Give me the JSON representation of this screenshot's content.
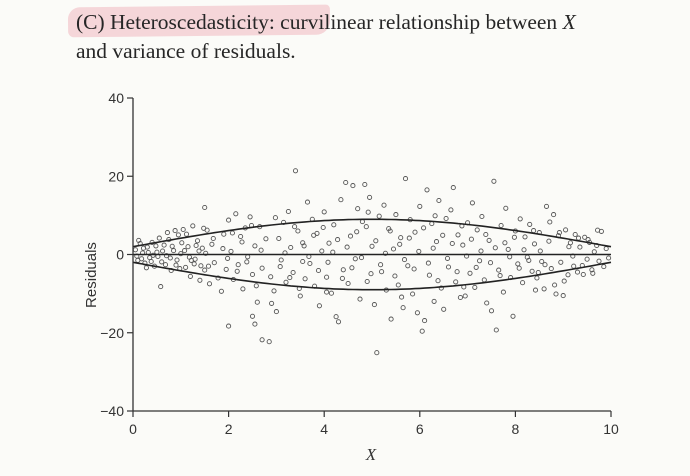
{
  "heading": {
    "line1_prefix": "(C) Heteroscedasticity: curvilinear relationship between ",
    "line1_var": "X",
    "line2": "and variance of residuals."
  },
  "colors": {
    "axis": "#333333",
    "marker": "#555555",
    "curve": "#222222",
    "highlight": "#f3c9cf"
  },
  "chart_data": {
    "type": "scatter",
    "xlabel": "X",
    "ylabel": "Residuals",
    "xlim": [
      0,
      10
    ],
    "ylim": [
      -40,
      40
    ],
    "xticks": [
      0,
      2,
      4,
      6,
      8,
      10
    ],
    "yticks": [
      -40,
      -20,
      0,
      20,
      40
    ],
    "grid": false,
    "marker": "open-circle",
    "envelope_amplitude": [
      2,
      9
    ],
    "points": [
      [
        0.05,
        1.2
      ],
      [
        0.1,
        -1.5
      ],
      [
        0.15,
        2.8
      ],
      [
        0.2,
        0.4
      ],
      [
        0.25,
        -2.2
      ],
      [
        0.3,
        1.9
      ],
      [
        0.35,
        -0.8
      ],
      [
        0.4,
        3.1
      ],
      [
        0.45,
        -3.0
      ],
      [
        0.5,
        0.6
      ],
      [
        0.55,
        4.2
      ],
      [
        0.6,
        -1.9
      ],
      [
        0.65,
        2.4
      ],
      [
        0.7,
        -0.3
      ],
      [
        0.75,
        3.8
      ],
      [
        0.8,
        -4.1
      ],
      [
        0.85,
        1.0
      ],
      [
        0.9,
        -2.7
      ],
      [
        0.95,
        5.0
      ],
      [
        1.0,
        0.2
      ],
      [
        0.12,
        3.6
      ],
      [
        0.28,
        -3.4
      ],
      [
        0.42,
        -0.2
      ],
      [
        0.58,
        -8.2
      ],
      [
        0.72,
        5.6
      ],
      [
        0.88,
        6.1
      ],
      [
        1.05,
        6.4
      ],
      [
        1.1,
        -3.3
      ],
      [
        1.15,
        2.0
      ],
      [
        1.2,
        -5.6
      ],
      [
        1.25,
        7.3
      ],
      [
        1.3,
        -1.2
      ],
      [
        1.35,
        3.5
      ],
      [
        1.4,
        -6.6
      ],
      [
        1.45,
        1.6
      ],
      [
        1.5,
        -4.0
      ],
      [
        1.55,
        6.2
      ],
      [
        1.6,
        -7.5
      ],
      [
        1.65,
        2.6
      ],
      [
        1.7,
        -2.1
      ],
      [
        1.5,
        12.0
      ],
      [
        1.85,
        -9.4
      ],
      [
        1.9,
        5.2
      ],
      [
        1.95,
        -3.8
      ],
      [
        2.0,
        8.8
      ],
      [
        2.05,
        0.8
      ],
      [
        2.1,
        -6.4
      ],
      [
        2.15,
        10.4
      ],
      [
        2.2,
        -2.6
      ],
      [
        2.25,
        4.6
      ],
      [
        2.0,
        -18.3
      ],
      [
        2.3,
        -8.8
      ],
      [
        2.35,
        6.8
      ],
      [
        2.4,
        -0.6
      ],
      [
        2.45,
        9.6
      ],
      [
        2.5,
        -5.1
      ],
      [
        2.55,
        2.2
      ],
      [
        2.6,
        -12.2
      ],
      [
        2.65,
        7.1
      ],
      [
        2.7,
        -3.5
      ],
      [
        2.5,
        -15.8
      ],
      [
        2.55,
        -17.8
      ],
      [
        2.7,
        -21.8
      ],
      [
        2.85,
        -22.3
      ],
      [
        2.9,
        -12.5
      ],
      [
        2.95,
        -9.3
      ],
      [
        3.0,
        -14.6
      ],
      [
        3.05,
        4.1
      ],
      [
        3.1,
        -1.4
      ],
      [
        3.15,
        8.2
      ],
      [
        3.2,
        -7.1
      ],
      [
        3.25,
        11.0
      ],
      [
        3.3,
        1.8
      ],
      [
        3.35,
        -4.6
      ],
      [
        3.4,
        21.4
      ],
      [
        3.45,
        6.0
      ],
      [
        3.5,
        -10.6
      ],
      [
        3.55,
        3.0
      ],
      [
        3.6,
        -6.2
      ],
      [
        3.65,
        13.4
      ],
      [
        3.7,
        -2.3
      ],
      [
        3.75,
        9.0
      ],
      [
        3.8,
        -8.1
      ],
      [
        3.85,
        5.4
      ],
      [
        3.9,
        -13.1
      ],
      [
        3.95,
        0.9
      ],
      [
        4.0,
        10.9
      ],
      [
        4.05,
        -5.8
      ],
      [
        4.1,
        2.9
      ],
      [
        4.15,
        -9.9
      ],
      [
        4.2,
        7.6
      ],
      [
        4.25,
        -15.9
      ],
      [
        4.3,
        -17.2
      ],
      [
        4.35,
        14.0
      ],
      [
        4.4,
        -3.9
      ],
      [
        4.45,
        18.4
      ],
      [
        4.5,
        -7.4
      ],
      [
        4.55,
        4.7
      ],
      [
        4.6,
        17.6
      ],
      [
        4.65,
        -1.1
      ],
      [
        4.7,
        11.7
      ],
      [
        4.75,
        -11.4
      ],
      [
        4.8,
        8.4
      ],
      [
        4.85,
        17.9
      ],
      [
        4.9,
        -6.9
      ],
      [
        4.95,
        14.6
      ],
      [
        5.0,
        2.1
      ],
      [
        5.05,
        -12.8
      ],
      [
        5.1,
        -25.1
      ],
      [
        5.15,
        9.8
      ],
      [
        5.2,
        -4.4
      ],
      [
        5.25,
        12.6
      ],
      [
        5.3,
        -9.1
      ],
      [
        5.35,
        6.6
      ],
      [
        5.4,
        -16.5
      ],
      [
        5.45,
        1.4
      ],
      [
        5.5,
        10.2
      ],
      [
        5.55,
        -7.8
      ],
      [
        5.6,
        4.3
      ],
      [
        5.65,
        -13.6
      ],
      [
        5.7,
        19.4
      ],
      [
        5.75,
        -2.9
      ],
      [
        5.8,
        8.9
      ],
      [
        5.85,
        -10.1
      ],
      [
        5.9,
        5.7
      ],
      [
        5.95,
        -14.9
      ],
      [
        6.0,
        12.3
      ],
      [
        6.05,
        -19.6
      ],
      [
        6.1,
        -16.9
      ],
      [
        6.15,
        16.5
      ],
      [
        6.2,
        -5.3
      ],
      [
        6.25,
        7.9
      ],
      [
        6.3,
        -12.0
      ],
      [
        6.35,
        3.3
      ],
      [
        6.4,
        13.8
      ],
      [
        6.45,
        -8.6
      ],
      [
        6.5,
        -14.0
      ],
      [
        6.55,
        9.2
      ],
      [
        6.6,
        -3.2
      ],
      [
        6.65,
        11.4
      ],
      [
        6.7,
        17.1
      ],
      [
        6.75,
        -7.0
      ],
      [
        6.8,
        5.0
      ],
      [
        6.85,
        -11.0
      ],
      [
        6.9,
        2.4
      ],
      [
        6.95,
        -10.6
      ],
      [
        7.0,
        8.1
      ],
      [
        7.05,
        -4.8
      ],
      [
        7.1,
        13.2
      ],
      [
        7.15,
        -8.4
      ],
      [
        7.2,
        6.3
      ],
      [
        7.25,
        -1.6
      ],
      [
        7.3,
        9.7
      ],
      [
        7.35,
        -6.5
      ],
      [
        7.4,
        -12.4
      ],
      [
        7.45,
        3.6
      ],
      [
        7.5,
        -14.4
      ],
      [
        7.55,
        18.7
      ],
      [
        7.6,
        -19.3
      ],
      [
        7.65,
        -4.0
      ],
      [
        7.7,
        7.4
      ],
      [
        7.75,
        -9.6
      ],
      [
        7.8,
        11.8
      ],
      [
        7.85,
        1.3
      ],
      [
        7.9,
        -5.9
      ],
      [
        7.95,
        -15.8
      ],
      [
        8.0,
        6.0
      ],
      [
        8.05,
        -2.4
      ],
      [
        8.1,
        9.1
      ],
      [
        8.15,
        -7.2
      ],
      [
        8.2,
        4.5
      ],
      [
        8.25,
        -0.7
      ],
      [
        8.3,
        7.7
      ],
      [
        8.35,
        -4.3
      ],
      [
        8.4,
        2.7
      ],
      [
        8.45,
        -6.0
      ],
      [
        8.5,
        5.6
      ],
      [
        8.55,
        -1.8
      ],
      [
        8.6,
        -8.8
      ],
      [
        8.65,
        12.3
      ],
      [
        8.7,
        3.4
      ],
      [
        8.75,
        -3.6
      ],
      [
        8.8,
        10.2
      ],
      [
        8.85,
        -10.1
      ],
      [
        8.9,
        4.8
      ],
      [
        8.95,
        -2.0
      ],
      [
        9.0,
        -10.5
      ],
      [
        9.05,
        6.3
      ],
      [
        9.1,
        -5.2
      ],
      [
        9.15,
        3.0
      ],
      [
        9.2,
        -0.4
      ],
      [
        9.25,
        5.1
      ],
      [
        9.3,
        -4.5
      ],
      [
        9.35,
        1.9
      ],
      [
        9.4,
        -2.8
      ],
      [
        9.45,
        4.4
      ],
      [
        9.5,
        -1.2
      ],
      [
        9.55,
        3.1
      ],
      [
        9.6,
        -3.9
      ],
      [
        9.65,
        0.7
      ],
      [
        9.7,
        2.3
      ],
      [
        9.75,
        -1.7
      ],
      [
        9.8,
        5.9
      ],
      [
        9.85,
        -3.1
      ],
      [
        9.9,
        1.5
      ],
      [
        9.95,
        -0.9
      ],
      [
        9.72,
        6.2
      ],
      [
        9.62,
        -4.8
      ],
      [
        9.52,
        3.8
      ],
      [
        9.42,
        -5.1
      ],
      [
        9.32,
        4.2
      ],
      [
        9.22,
        -3.0
      ],
      [
        9.12,
        2.0
      ],
      [
        9.02,
        -6.8
      ],
      [
        8.92,
        5.6
      ],
      [
        8.82,
        -7.8
      ],
      [
        8.72,
        8.3
      ],
      [
        8.62,
        -2.6
      ],
      [
        8.52,
        0.9
      ],
      [
        8.42,
        -9.1
      ],
      [
        1.12,
        5.2
      ],
      [
        1.28,
        -2.4
      ],
      [
        1.38,
        0.9
      ],
      [
        1.48,
        6.7
      ],
      [
        1.58,
        -3.0
      ],
      [
        1.68,
        4.1
      ],
      [
        1.78,
        -6.0
      ],
      [
        1.88,
        1.5
      ],
      [
        1.98,
        -1.0
      ],
      [
        2.08,
        5.5
      ],
      [
        2.18,
        -4.3
      ],
      [
        2.28,
        3.2
      ],
      [
        2.38,
        -1.9
      ],
      [
        2.48,
        7.4
      ],
      [
        2.58,
        -8.0
      ],
      [
        2.68,
        1.1
      ],
      [
        2.78,
        4.0
      ],
      [
        2.88,
        -5.7
      ],
      [
        2.98,
        9.4
      ],
      [
        3.08,
        -3.1
      ],
      [
        3.18,
        0.4
      ],
      [
        3.28,
        -5.9
      ],
      [
        3.38,
        7.1
      ],
      [
        3.48,
        -8.7
      ],
      [
        3.58,
        2.2
      ],
      [
        3.68,
        -0.5
      ],
      [
        3.78,
        4.9
      ],
      [
        3.88,
        -4.1
      ],
      [
        3.98,
        6.9
      ],
      [
        4.08,
        -2.0
      ],
      [
        4.18,
        0.6
      ],
      [
        4.28,
        3.8
      ],
      [
        4.38,
        -6.1
      ],
      [
        4.48,
        1.9
      ],
      [
        4.58,
        -3.4
      ],
      [
        4.68,
        5.8
      ],
      [
        4.78,
        -0.8
      ],
      [
        4.88,
        7.1
      ],
      [
        4.98,
        -4.9
      ],
      [
        5.08,
        3.5
      ],
      [
        5.18,
        -2.6
      ],
      [
        5.28,
        0.3
      ],
      [
        5.38,
        6.0
      ],
      [
        5.48,
        -5.5
      ],
      [
        5.58,
        2.6
      ],
      [
        5.68,
        -1.3
      ],
      [
        5.78,
        4.2
      ],
      [
        5.88,
        -3.7
      ],
      [
        5.98,
        0.8
      ],
      [
        6.08,
        6.8
      ],
      [
        6.18,
        -2.2
      ],
      [
        6.28,
        1.6
      ],
      [
        6.38,
        -6.7
      ],
      [
        6.48,
        4.9
      ],
      [
        6.58,
        -1.0
      ],
      [
        6.68,
        2.8
      ],
      [
        6.78,
        -4.4
      ],
      [
        6.88,
        7.3
      ],
      [
        6.98,
        -0.4
      ],
      [
        7.08,
        3.9
      ],
      [
        7.18,
        -3.3
      ],
      [
        7.28,
        0.9
      ],
      [
        7.38,
        5.1
      ],
      [
        7.48,
        -2.1
      ],
      [
        7.58,
        1.7
      ],
      [
        7.68,
        -5.4
      ],
      [
        7.78,
        3.0
      ],
      [
        7.88,
        -0.6
      ],
      [
        7.98,
        4.4
      ],
      [
        8.08,
        -3.5
      ],
      [
        8.18,
        1.2
      ],
      [
        8.28,
        -1.5
      ],
      [
        8.38,
        6.1
      ],
      [
        8.48,
        -4.6
      ],
      [
        3.55,
        -1.8
      ],
      [
        4.05,
        -9.6
      ],
      [
        4.92,
        10.8
      ],
      [
        5.62,
        -10.9
      ],
      [
        6.32,
        9.9
      ],
      [
        6.92,
        -8.3
      ],
      [
        0.18,
        -1.1
      ],
      [
        0.32,
        0.5
      ],
      [
        0.48,
        2.2
      ],
      [
        0.62,
        0.9
      ],
      [
        0.78,
        -0.9
      ],
      [
        0.92,
        -1.4
      ],
      [
        1.02,
        3.0
      ],
      [
        1.18,
        -0.7
      ],
      [
        0.08,
        -0.4
      ],
      [
        0.22,
        1.6
      ],
      [
        0.38,
        -1.8
      ],
      [
        0.52,
        -0.5
      ],
      [
        0.68,
        -2.6
      ],
      [
        0.82,
        2.1
      ],
      [
        0.98,
        -3.6
      ],
      [
        1.08,
        1.0
      ],
      [
        1.22,
        -1.5
      ],
      [
        1.32,
        2.3
      ],
      [
        1.42,
        -2.9
      ],
      [
        1.52,
        0.3
      ]
    ]
  }
}
